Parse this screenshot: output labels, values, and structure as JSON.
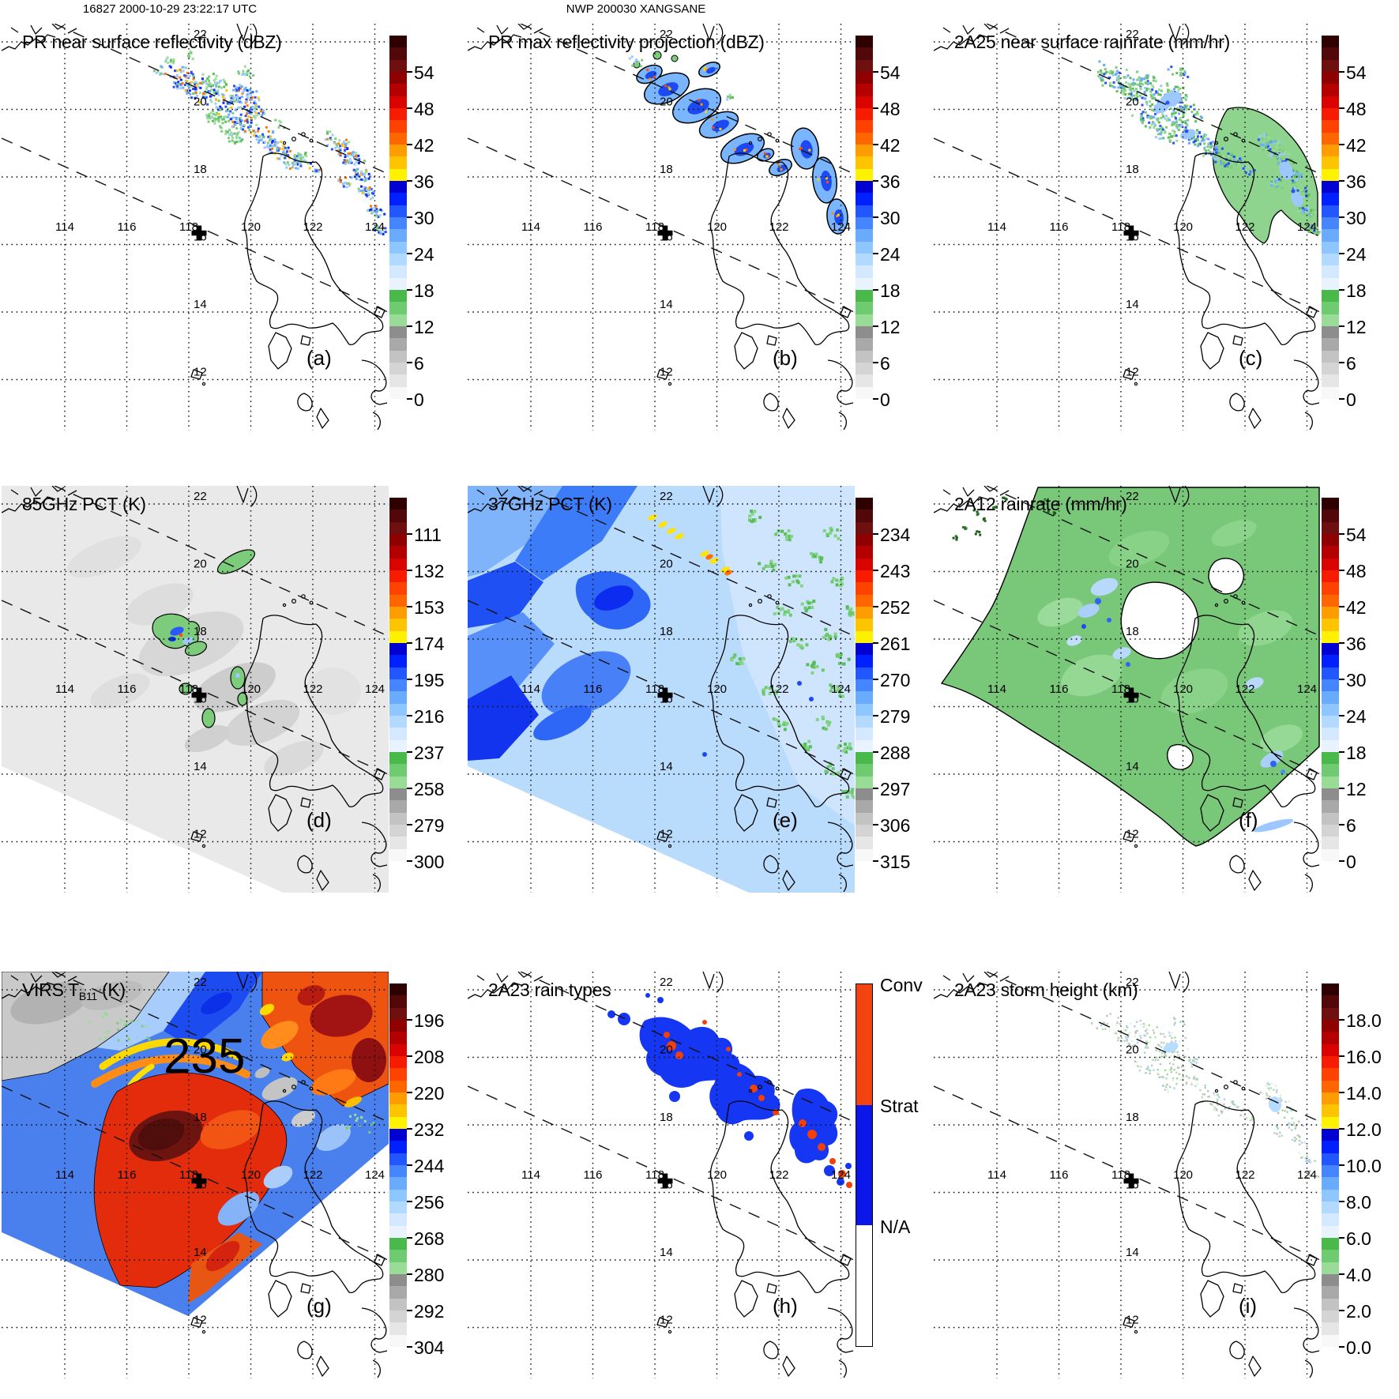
{
  "header": {
    "left": "16827 2000-10-29 23:22:17 UTC",
    "center": "NWP 200030 XANGSANE"
  },
  "map": {
    "lon_labels": [
      "114",
      "116",
      "118",
      "120",
      "122",
      "124"
    ],
    "lat_labels": [
      "22",
      "20",
      "18",
      "16",
      "14",
      "12"
    ],
    "cross_marker": {
      "lon": 118.3,
      "lat": 16.3
    }
  },
  "colorbar_colors": [
    "#2f0000",
    "#520808",
    "#6f0f0f",
    "#8f0000",
    "#b40000",
    "#d90400",
    "#f71c00",
    "#ff4200",
    "#ff6600",
    "#ff9c00",
    "#ffc400",
    "#fff200",
    "#0000d2",
    "#0020ff",
    "#2257ff",
    "#4585ff",
    "#68abff",
    "#8ec7ff",
    "#b2d9ff",
    "#d4e9ff",
    "#e8f3ff",
    "#49b949",
    "#6fcb6f",
    "#98dc98",
    "#8d8d8d",
    "#a9a9a9",
    "#c3c3c3",
    "#d4d4d4",
    "#e6e6e6",
    "#f8f8f8"
  ],
  "rain_type_colors": {
    "conv": "#f24310",
    "strat": "#0b16e8",
    "na": "#ffffff"
  },
  "panels": [
    {
      "id": "a",
      "letter": "(a)",
      "title": "PR near surface reflectivity (dBZ)",
      "colorbar": {
        "type": "gradient",
        "labels": [
          "54",
          "48",
          "42",
          "36",
          "30",
          "24",
          "18",
          "12",
          "6",
          "0"
        ]
      }
    },
    {
      "id": "b",
      "letter": "(b)",
      "title": "PR max reflectivity projection (dBZ)",
      "colorbar": {
        "type": "gradient",
        "labels": [
          "54",
          "48",
          "42",
          "36",
          "30",
          "24",
          "18",
          "12",
          "6",
          "0"
        ]
      }
    },
    {
      "id": "c",
      "letter": "(c)",
      "title": "2A25 near surface rainrate (mm/hr)",
      "colorbar": {
        "type": "gradient",
        "labels": [
          "54",
          "48",
          "42",
          "36",
          "30",
          "24",
          "18",
          "12",
          "6",
          "0"
        ]
      }
    },
    {
      "id": "d",
      "letter": "(d)",
      "title": "85GHz PCT (K)",
      "colorbar": {
        "type": "gradient",
        "labels": [
          "111",
          "132",
          "153",
          "174",
          "195",
          "216",
          "237",
          "258",
          "279",
          "300"
        ]
      }
    },
    {
      "id": "e",
      "letter": "(e)",
      "title": "37GHz PCT (K)",
      "colorbar": {
        "type": "gradient",
        "labels": [
          "234",
          "243",
          "252",
          "261",
          "270",
          "279",
          "288",
          "297",
          "306",
          "315"
        ]
      }
    },
    {
      "id": "f",
      "letter": "(f)",
      "title": "2A12 rainrate (mm/hr)",
      "colorbar": {
        "type": "gradient",
        "labels": [
          "54",
          "48",
          "42",
          "36",
          "30",
          "24",
          "18",
          "12",
          "6",
          "0"
        ]
      }
    },
    {
      "id": "g",
      "letter": "(g)",
      "title_parts": {
        "pre": "VIRS T",
        "sub": "B11",
        "post": " (K)"
      },
      "contour_label": "235",
      "colorbar": {
        "type": "gradient",
        "labels": [
          "196",
          "208",
          "220",
          "232",
          "244",
          "256",
          "268",
          "280",
          "292",
          "304"
        ]
      }
    },
    {
      "id": "h",
      "letter": "(h)",
      "title": "2A23 rain types",
      "colorbar": {
        "type": "categorical",
        "labels": [
          "Conv",
          "Strat",
          "N/A"
        ]
      }
    },
    {
      "id": "i",
      "letter": "(i)",
      "title": "2A23 storm height (km)",
      "colorbar": {
        "type": "gradient",
        "labels": [
          "18.0",
          "16.0",
          "14.0",
          "12.0",
          "10.0",
          "8.0",
          "6.0",
          "4.0",
          "2.0",
          "0.0"
        ]
      }
    }
  ],
  "chart_data": [
    {
      "panel": "a",
      "type": "heatmap",
      "title": "PR near surface reflectivity (dBZ)",
      "colorbar_ticks": [
        54,
        48,
        42,
        36,
        30,
        24,
        18,
        12,
        6,
        0
      ],
      "lon_range": [
        112,
        125
      ],
      "lat_range": [
        11,
        23
      ]
    },
    {
      "panel": "b",
      "type": "heatmap",
      "title": "PR max reflectivity projection (dBZ)",
      "colorbar_ticks": [
        54,
        48,
        42,
        36,
        30,
        24,
        18,
        12,
        6,
        0
      ],
      "lon_range": [
        112,
        125
      ],
      "lat_range": [
        11,
        23
      ]
    },
    {
      "panel": "c",
      "type": "heatmap",
      "title": "2A25 near surface rainrate (mm/hr)",
      "colorbar_ticks": [
        54,
        48,
        42,
        36,
        30,
        24,
        18,
        12,
        6,
        0
      ],
      "lon_range": [
        112,
        125
      ],
      "lat_range": [
        11,
        23
      ]
    },
    {
      "panel": "d",
      "type": "heatmap",
      "title": "85GHz PCT (K)",
      "colorbar_ticks": [
        111,
        132,
        153,
        174,
        195,
        216,
        237,
        258,
        279,
        300
      ],
      "lon_range": [
        112,
        125
      ],
      "lat_range": [
        11,
        23
      ]
    },
    {
      "panel": "e",
      "type": "heatmap",
      "title": "37GHz PCT (K)",
      "colorbar_ticks": [
        234,
        243,
        252,
        261,
        270,
        279,
        288,
        297,
        306,
        315
      ],
      "lon_range": [
        112,
        125
      ],
      "lat_range": [
        11,
        23
      ]
    },
    {
      "panel": "f",
      "type": "heatmap",
      "title": "2A12 rainrate (mm/hr)",
      "colorbar_ticks": [
        54,
        48,
        42,
        36,
        30,
        24,
        18,
        12,
        6,
        0
      ],
      "lon_range": [
        112,
        125
      ],
      "lat_range": [
        11,
        23
      ]
    },
    {
      "panel": "g",
      "type": "heatmap",
      "title": "VIRS TB11 (K)",
      "colorbar_ticks": [
        196,
        208,
        220,
        232,
        244,
        256,
        268,
        280,
        292,
        304
      ],
      "contour_label": 235,
      "lon_range": [
        112,
        125
      ],
      "lat_range": [
        11,
        23
      ]
    },
    {
      "panel": "h",
      "type": "heatmap",
      "title": "2A23 rain types",
      "categories": [
        "Conv",
        "Strat",
        "N/A"
      ],
      "lon_range": [
        112,
        125
      ],
      "lat_range": [
        11,
        23
      ]
    },
    {
      "panel": "i",
      "type": "heatmap",
      "title": "2A23 storm height (km)",
      "colorbar_ticks": [
        18,
        16,
        14,
        12,
        10,
        8,
        6,
        4,
        2,
        0
      ],
      "lon_range": [
        112,
        125
      ],
      "lat_range": [
        11,
        23
      ]
    }
  ]
}
